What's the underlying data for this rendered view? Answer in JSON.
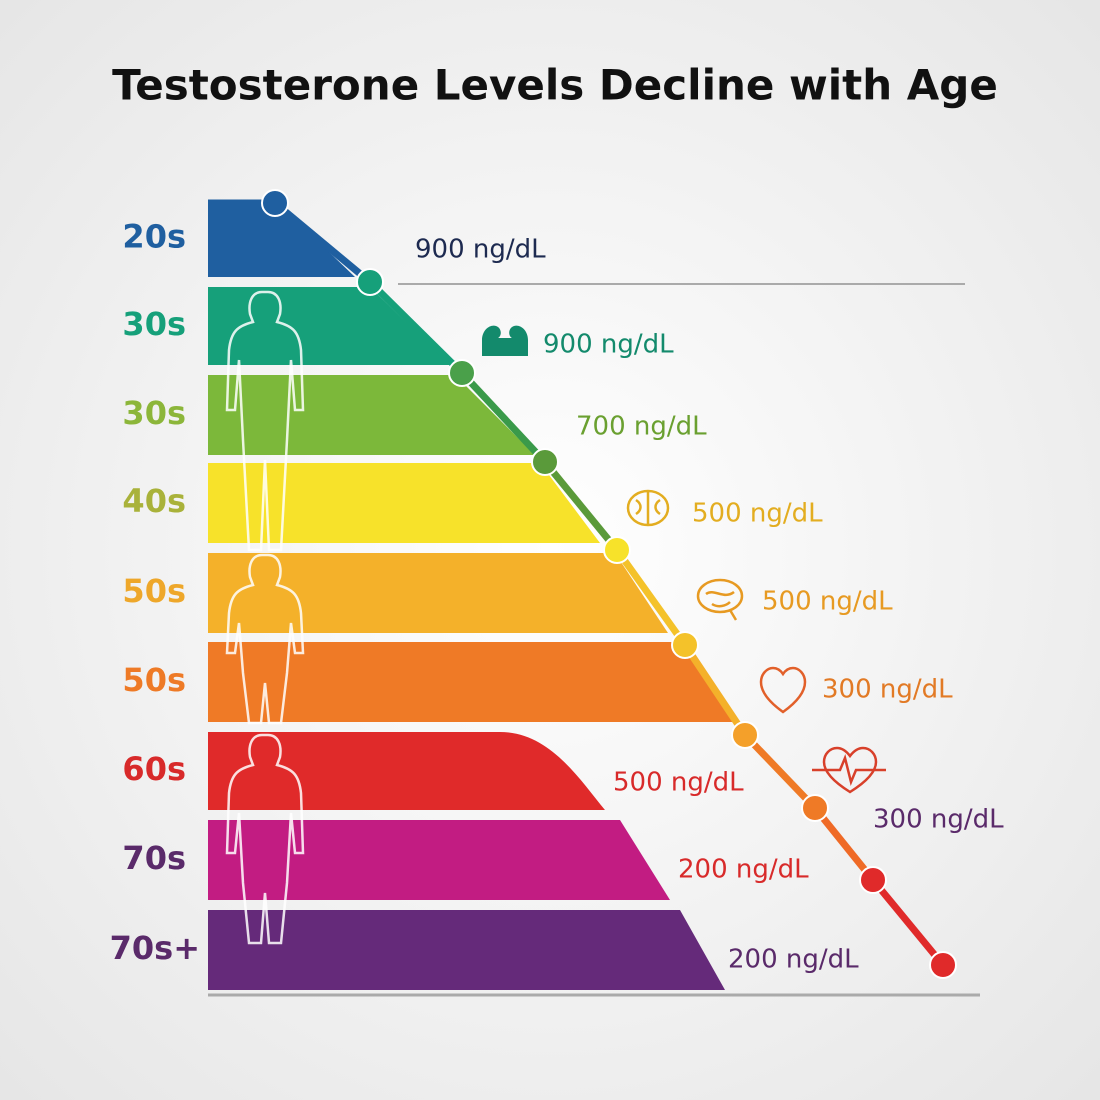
{
  "title": "Testosterone Levels Decline with Age",
  "rows": [
    {
      "label": "20s",
      "color": "#1f5fa0"
    },
    {
      "label": "30s",
      "color": "#16a07a"
    },
    {
      "label": "30s",
      "color": "#7cb83a"
    },
    {
      "label": "40s",
      "color": "#f7e22a"
    },
    {
      "label": "50s",
      "color": "#f4b12a"
    },
    {
      "label": "50s",
      "color": "#ef7a26"
    },
    {
      "label": "60s",
      "color": "#e02a2a"
    },
    {
      "label": "70s",
      "color": "#c21c82"
    },
    {
      "label": "70s+",
      "color": "#652a7a"
    }
  ],
  "label_colors": [
    "#1f5fa0",
    "#16a07a",
    "#8cb63a",
    "#a9b23a",
    "#eea72a",
    "#ee7a26",
    "#d82a2a",
    "#5a2a6a",
    "#5a2a6a"
  ],
  "levels": [
    {
      "text": "900 ng/dL",
      "color": "#1d2a50"
    },
    {
      "text": "900 ng/dL",
      "color": "#138a6c"
    },
    {
      "text": "700 ng/dL",
      "color": "#6aa030"
    },
    {
      "text": "500 ng/dL",
      "color": "#e3ad20"
    },
    {
      "text": "500 ng/dL",
      "color": "#e79a22"
    },
    {
      "text": "300 ng/dL",
      "color": "#e27a25"
    },
    {
      "text": "500 ng/dL",
      "color": "#d82a2a"
    },
    {
      "text": "300 ng/dL",
      "color": "#5a2a6a"
    },
    {
      "text": "200 ng/dL",
      "color": "#d82a2a"
    },
    {
      "text": "200 ng/dL",
      "color": "#5a2a6a"
    }
  ]
}
